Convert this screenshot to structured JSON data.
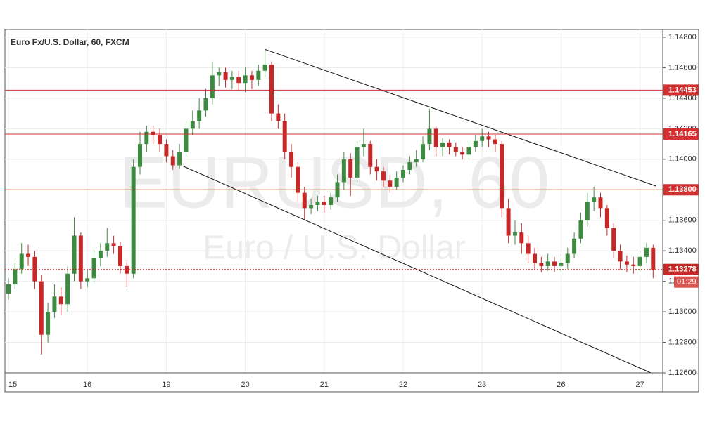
{
  "chart_data": {
    "type": "candlestick",
    "title": "Euro Fx/U.S. Dollar, 60, FXCM",
    "watermark": "EURUSD, 60",
    "watermark_subtitle": "Euro / U.S. Dollar",
    "categories": [
      "15",
      null,
      null,
      null,
      null,
      null,
      null,
      null,
      null,
      null,
      null,
      null,
      "16",
      null,
      null,
      null,
      null,
      null,
      null,
      null,
      null,
      null,
      null,
      null,
      "19",
      null,
      null,
      null,
      null,
      null,
      null,
      null,
      null,
      null,
      null,
      null,
      "20",
      null,
      null,
      null,
      null,
      null,
      null,
      null,
      null,
      null,
      null,
      null,
      "21",
      null,
      null,
      null,
      null,
      null,
      null,
      null,
      null,
      null,
      null,
      null,
      "22",
      null,
      null,
      null,
      null,
      null,
      null,
      null,
      null,
      null,
      null,
      null,
      "23",
      null,
      null,
      null,
      null,
      null,
      null,
      null,
      null,
      null,
      null,
      null,
      "26",
      null,
      null,
      null,
      null,
      null,
      null,
      null,
      null,
      null,
      null,
      null,
      "27",
      null,
      null
    ],
    "open": [
      1.1312,
      1.1318,
      1.1328,
      1.1338,
      1.1336,
      1.132,
      1.1285,
      1.13,
      1.131,
      1.1305,
      1.1325,
      1.135,
      1.132,
      1.1322,
      1.1335,
      1.134,
      1.1345,
      1.1343,
      1.133,
      1.1325,
      1.1395,
      1.141,
      1.1418,
      1.1416,
      1.141,
      1.1402,
      1.1396,
      1.1405,
      1.142,
      1.1425,
      1.1432,
      1.144,
      1.1455,
      1.1457,
      1.1452,
      1.1454,
      1.145,
      1.1455,
      1.1452,
      1.1458,
      1.1462,
      1.143,
      1.1425,
      1.1405,
      1.1395,
      1.1378,
      1.1368,
      1.137,
      1.1372,
      1.137,
      1.1375,
      1.1385,
      1.14,
      1.1388,
      1.1408,
      1.141,
      1.1395,
      1.1392,
      1.1386,
      1.1382,
      1.1388,
      1.1393,
      1.1398,
      1.14,
      1.141,
      1.142,
      1.1408,
      1.1411,
      1.1408,
      1.1405,
      1.1403,
      1.1408,
      1.1412,
      1.1415,
      1.1413,
      1.141,
      1.1368,
      1.135,
      1.1352,
      1.1345,
      1.1338,
      1.1332,
      1.133,
      1.1333,
      1.133,
      1.1332,
      1.1338,
      1.1348,
      1.136,
      1.1372,
      1.1375,
      1.1368,
      1.1355,
      1.134,
      1.1333,
      1.1331,
      1.133,
      1.1336,
      1.1342
    ],
    "high": [
      1.1322,
      1.1332,
      1.1345,
      1.1344,
      1.134,
      1.1324,
      1.1306,
      1.1318,
      1.1316,
      1.133,
      1.1362,
      1.1352,
      1.1328,
      1.134,
      1.1345,
      1.1355,
      1.135,
      1.1346,
      1.1334,
      1.14,
      1.1418,
      1.1422,
      1.1422,
      1.142,
      1.1413,
      1.1406,
      1.141,
      1.1425,
      1.1432,
      1.144,
      1.1446,
      1.1464,
      1.146,
      1.146,
      1.1458,
      1.1458,
      1.146,
      1.1458,
      1.1462,
      1.1472,
      1.1464,
      1.1436,
      1.143,
      1.141,
      1.1398,
      1.1382,
      1.1374,
      1.1376,
      1.1376,
      1.1378,
      1.139,
      1.1405,
      1.1404,
      1.1412,
      1.142,
      1.1412,
      1.14,
      1.1395,
      1.139,
      1.1392,
      1.1396,
      1.1402,
      1.1406,
      1.1415,
      1.1433,
      1.1422,
      1.1414,
      1.1413,
      1.1411,
      1.1408,
      1.1412,
      1.1416,
      1.142,
      1.1418,
      1.1416,
      1.1412,
      1.1374,
      1.136,
      1.1358,
      1.135,
      1.1342,
      1.1336,
      1.1338,
      1.1336,
      1.1336,
      1.1342,
      1.1352,
      1.1365,
      1.1378,
      1.1382,
      1.1378,
      1.137,
      1.1358,
      1.1344,
      1.1337,
      1.1336,
      1.134,
      1.1345,
      1.1344
    ],
    "low": [
      1.1308,
      1.1315,
      1.1325,
      1.133,
      1.1315,
      1.1272,
      1.128,
      1.1296,
      1.1298,
      1.13,
      1.132,
      1.1315,
      1.1316,
      1.1318,
      1.133,
      1.1336,
      1.1338,
      1.1325,
      1.1316,
      1.1322,
      1.139,
      1.1405,
      1.141,
      1.1405,
      1.1398,
      1.1393,
      1.1394,
      1.1402,
      1.1416,
      1.142,
      1.1428,
      1.1436,
      1.1448,
      1.1447,
      1.1446,
      1.1445,
      1.1444,
      1.1446,
      1.1448,
      1.1454,
      1.1425,
      1.142,
      1.14,
      1.1388,
      1.1372,
      1.136,
      1.1364,
      1.1366,
      1.1365,
      1.1367,
      1.1372,
      1.138,
      1.1376,
      1.1385,
      1.1402,
      1.139,
      1.1386,
      1.1382,
      1.1378,
      1.138,
      1.1385,
      1.139,
      1.1395,
      1.1398,
      1.1406,
      1.1402,
      1.1402,
      1.1403,
      1.1402,
      1.14,
      1.14,
      1.1405,
      1.1408,
      1.1408,
      1.1405,
      1.1362,
      1.1345,
      1.1344,
      1.1338,
      1.1332,
      1.1328,
      1.1326,
      1.1327,
      1.1326,
      1.1326,
      1.1328,
      1.1335,
      1.1345,
      1.1356,
      1.1366,
      1.1362,
      1.135,
      1.1335,
      1.1328,
      1.1326,
      1.1325,
      1.1326,
      1.1332,
      1.1322
    ],
    "close": [
      1.1318,
      1.1328,
      1.1338,
      1.1336,
      1.132,
      1.1285,
      1.13,
      1.131,
      1.1305,
      1.1325,
      1.135,
      1.132,
      1.1322,
      1.1335,
      1.134,
      1.1345,
      1.1343,
      1.133,
      1.1325,
      1.1395,
      1.141,
      1.1418,
      1.1416,
      1.141,
      1.1402,
      1.1396,
      1.1405,
      1.142,
      1.1425,
      1.1432,
      1.144,
      1.1455,
      1.1457,
      1.1452,
      1.1454,
      1.145,
      1.1455,
      1.1452,
      1.1458,
      1.1462,
      1.143,
      1.1425,
      1.1405,
      1.1395,
      1.1378,
      1.1368,
      1.137,
      1.1372,
      1.137,
      1.1375,
      1.1385,
      1.14,
      1.1388,
      1.1408,
      1.141,
      1.1395,
      1.1392,
      1.1386,
      1.1382,
      1.1388,
      1.1393,
      1.1398,
      1.14,
      1.141,
      1.142,
      1.1408,
      1.1411,
      1.1408,
      1.1405,
      1.1403,
      1.1408,
      1.1412,
      1.1415,
      1.1413,
      1.141,
      1.1368,
      1.135,
      1.1352,
      1.1345,
      1.1338,
      1.1332,
      1.133,
      1.1333,
      1.133,
      1.1332,
      1.1338,
      1.1348,
      1.136,
      1.1372,
      1.1375,
      1.1368,
      1.1355,
      1.134,
      1.1333,
      1.1331,
      1.133,
      1.1336,
      1.1342,
      1.13278
    ],
    "up_color": "#3d8b40",
    "down_color": "#c62828",
    "ylim": [
      1.126,
      1.148
    ],
    "yticks": [
      {
        "value": 1.126,
        "label": "1.12600"
      },
      {
        "value": 1.128,
        "label": "1.12800"
      },
      {
        "value": 1.13,
        "label": "1.13000"
      },
      {
        "value": 1.132,
        "label": "1.13200"
      },
      {
        "value": 1.134,
        "label": "1.13400"
      },
      {
        "value": 1.136,
        "label": "1.13600"
      },
      {
        "value": 1.138,
        "label": "1.13800"
      },
      {
        "value": 1.14,
        "label": "1.14000"
      },
      {
        "value": 1.142,
        "label": "1.14200"
      },
      {
        "value": 1.144,
        "label": "1.14400"
      },
      {
        "value": 1.146,
        "label": "1.14600"
      },
      {
        "value": 1.148,
        "label": "1.14800"
      }
    ],
    "grid": true,
    "levels": [
      {
        "value": 1.14453,
        "label": "1.14453"
      },
      {
        "value": 1.14165,
        "label": "1.14165"
      },
      {
        "value": 1.138,
        "label": "1.13800"
      }
    ],
    "level_color": "#d32f2f",
    "last_price": {
      "value": 1.13278,
      "label": "1.13278"
    },
    "countdown": "01:29",
    "trendlines": [
      {
        "from": 1.1472,
        "to": 1.13825
      },
      {
        "from": 1.13956,
        "to": 1.126
      }
    ]
  }
}
